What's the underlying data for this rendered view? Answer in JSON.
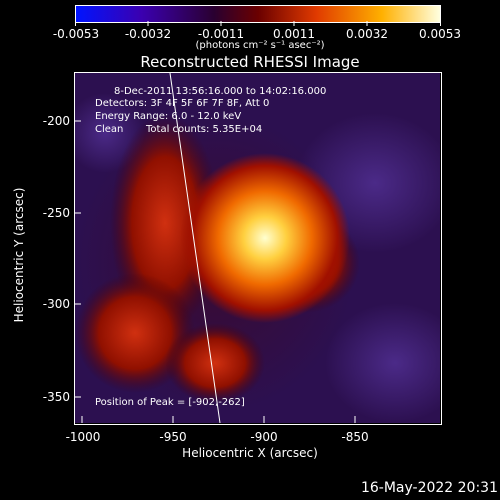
{
  "colorbar": {
    "ticks": [
      "-0.0053",
      "-0.0032",
      "-0.0011",
      "0.0011",
      "0.0032",
      "0.0053"
    ],
    "units_label": "(photons cm⁻² s⁻¹ asec⁻²)",
    "colors": [
      "#0014ff",
      "#3b00b0",
      "#2a0030",
      "#6a0000",
      "#e03a00",
      "#ffb000",
      "#ffffe0"
    ]
  },
  "title": "Reconstructed RHESSI Image",
  "info": {
    "time": "8-Dec-2011 13:56:16.000 to 14:02:16.000",
    "detectors": "Detectors: 3F 4F 5F 6F 7F 8F, Att 0",
    "energy": "Energy Range: 6.0 - 12.0 keV",
    "clean": "Clean",
    "counts": "Total counts: 5.35E+04"
  },
  "peak_label": "Position of Peak = [-902,-262]",
  "y_axis": {
    "label": "Heliocentric Y (arcsec)",
    "ticks": [
      "-200",
      "-250",
      "-300",
      "-350"
    ]
  },
  "x_axis": {
    "label": "Heliocentric X (arcsec)",
    "ticks": [
      "-1000",
      "-950",
      "-900",
      "-850"
    ]
  },
  "timestamp": "16-May-2022 20:31"
}
